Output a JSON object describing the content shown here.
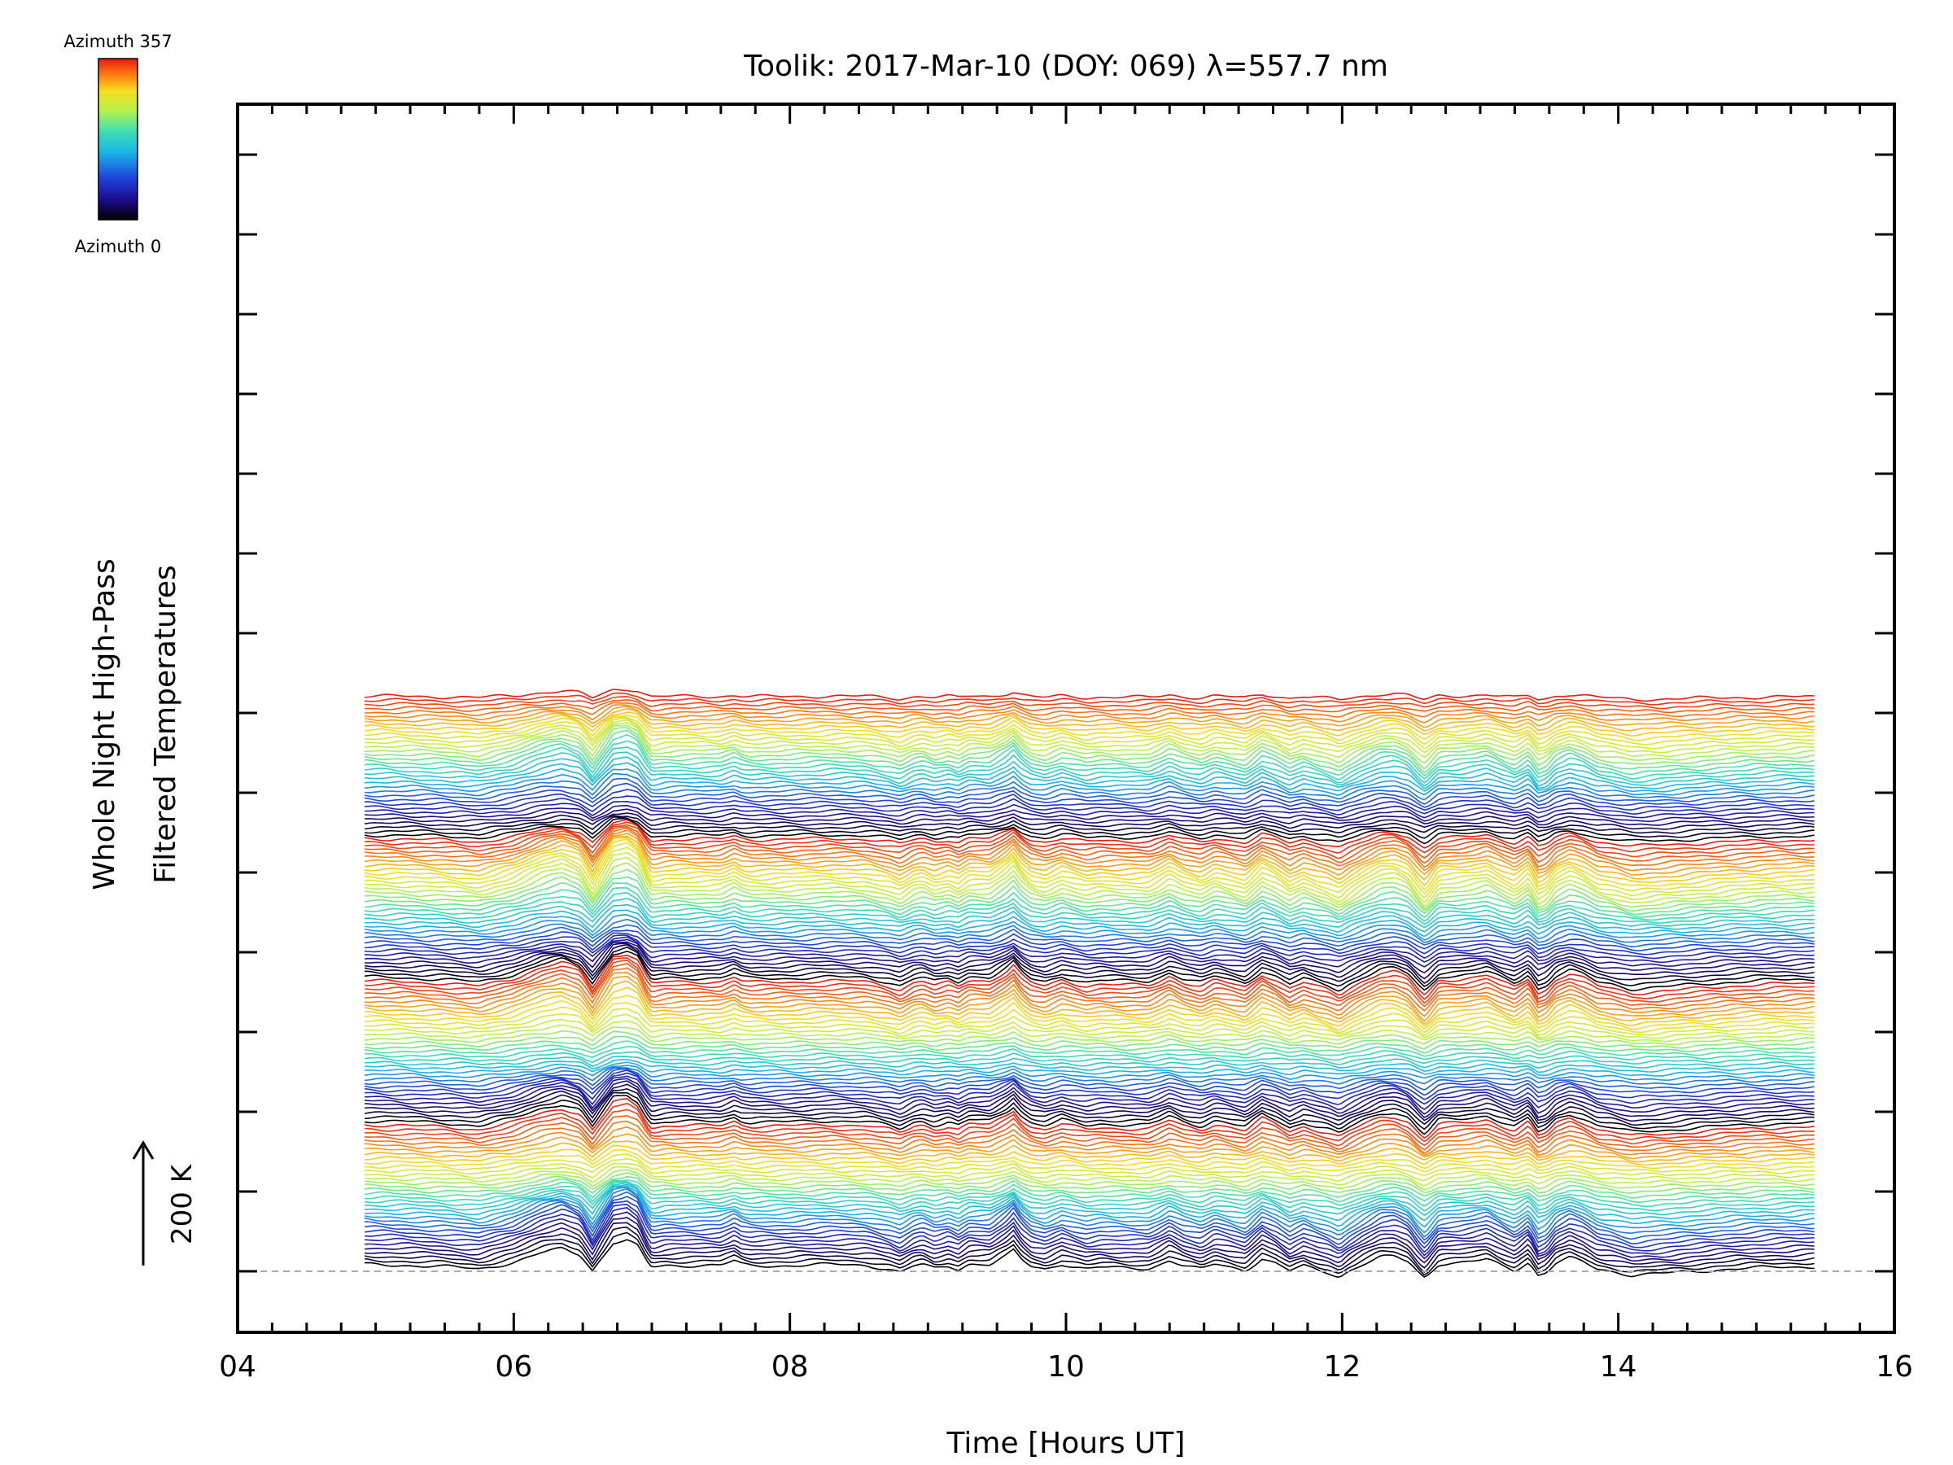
{
  "chart_data": {
    "type": "line",
    "title": "Toolik: 2017-Mar-10 (DOY: 069) λ=557.7 nm",
    "xlabel": "Time [Hours UT]",
    "ylabel_line1": "Whole Night High-Pass",
    "ylabel_line2": "Filtered Temperatures",
    "scale_label": "200 K",
    "xlim": [
      4,
      16
    ],
    "x_ticks": [
      "04",
      "06",
      "08",
      "10",
      "12",
      "14",
      "16"
    ],
    "x_tick_values": [
      4,
      6,
      8,
      10,
      12,
      14,
      16
    ],
    "data_x_range": [
      4.92,
      15.42
    ],
    "n_series": 144,
    "series_offset_k": 10,
    "baseline_style": "dashed grey",
    "colorbar": {
      "top_label": "Azimuth 357",
      "bottom_label": "Azimuth 0",
      "colormap": "rainbow",
      "colors": [
        "#000000",
        "#1c0a8a",
        "#1f3fd8",
        "#19b5e8",
        "#3fdfb0",
        "#b9f24a",
        "#f5dd1e",
        "#ff7a12",
        "#e81b12"
      ]
    },
    "shared_profile_x": [
      4.92,
      5.2,
      5.5,
      5.75,
      6.0,
      6.2,
      6.35,
      6.48,
      6.57,
      6.64,
      6.72,
      6.82,
      6.9,
      6.96,
      7.0,
      7.1,
      7.5,
      7.6,
      7.65,
      7.72,
      8.0,
      8.3,
      8.55,
      8.72,
      8.8,
      8.9,
      8.96,
      9.05,
      9.15,
      9.22,
      9.3,
      9.45,
      9.57,
      9.62,
      9.68,
      9.75,
      9.85,
      9.97,
      10.05,
      10.15,
      10.25,
      10.4,
      10.6,
      10.68,
      10.75,
      10.85,
      10.98,
      11.08,
      11.18,
      11.3,
      11.42,
      11.52,
      11.62,
      11.72,
      11.82,
      11.9,
      11.98,
      12.05,
      12.15,
      12.28,
      12.38,
      12.48,
      12.56,
      12.6,
      12.7,
      12.85,
      12.95,
      13.05,
      13.15,
      13.25,
      13.35,
      13.42,
      13.48,
      13.55,
      13.65,
      13.75,
      13.85,
      13.95,
      14.1,
      14.4,
      14.8,
      15.1,
      15.42
    ],
    "shared_profile_y_k": [
      8,
      6,
      2,
      -5,
      14,
      40,
      52,
      36,
      -8,
      28,
      68,
      74,
      58,
      18,
      0,
      5,
      6,
      18,
      8,
      4,
      5,
      8,
      6,
      -5,
      -14,
      4,
      8,
      -4,
      4,
      -5,
      10,
      8,
      32,
      46,
      20,
      2,
      -5,
      10,
      3,
      -5,
      0,
      -2,
      -3,
      8,
      20,
      4,
      -6,
      10,
      2,
      -8,
      24,
      10,
      -10,
      4,
      -7,
      -14,
      -26,
      -10,
      8,
      28,
      30,
      16,
      -16,
      -28,
      10,
      12,
      16,
      22,
      6,
      -8,
      15,
      -22,
      -14,
      12,
      26,
      14,
      -5,
      -10,
      -22,
      -15,
      -5,
      0,
      2
    ]
  }
}
